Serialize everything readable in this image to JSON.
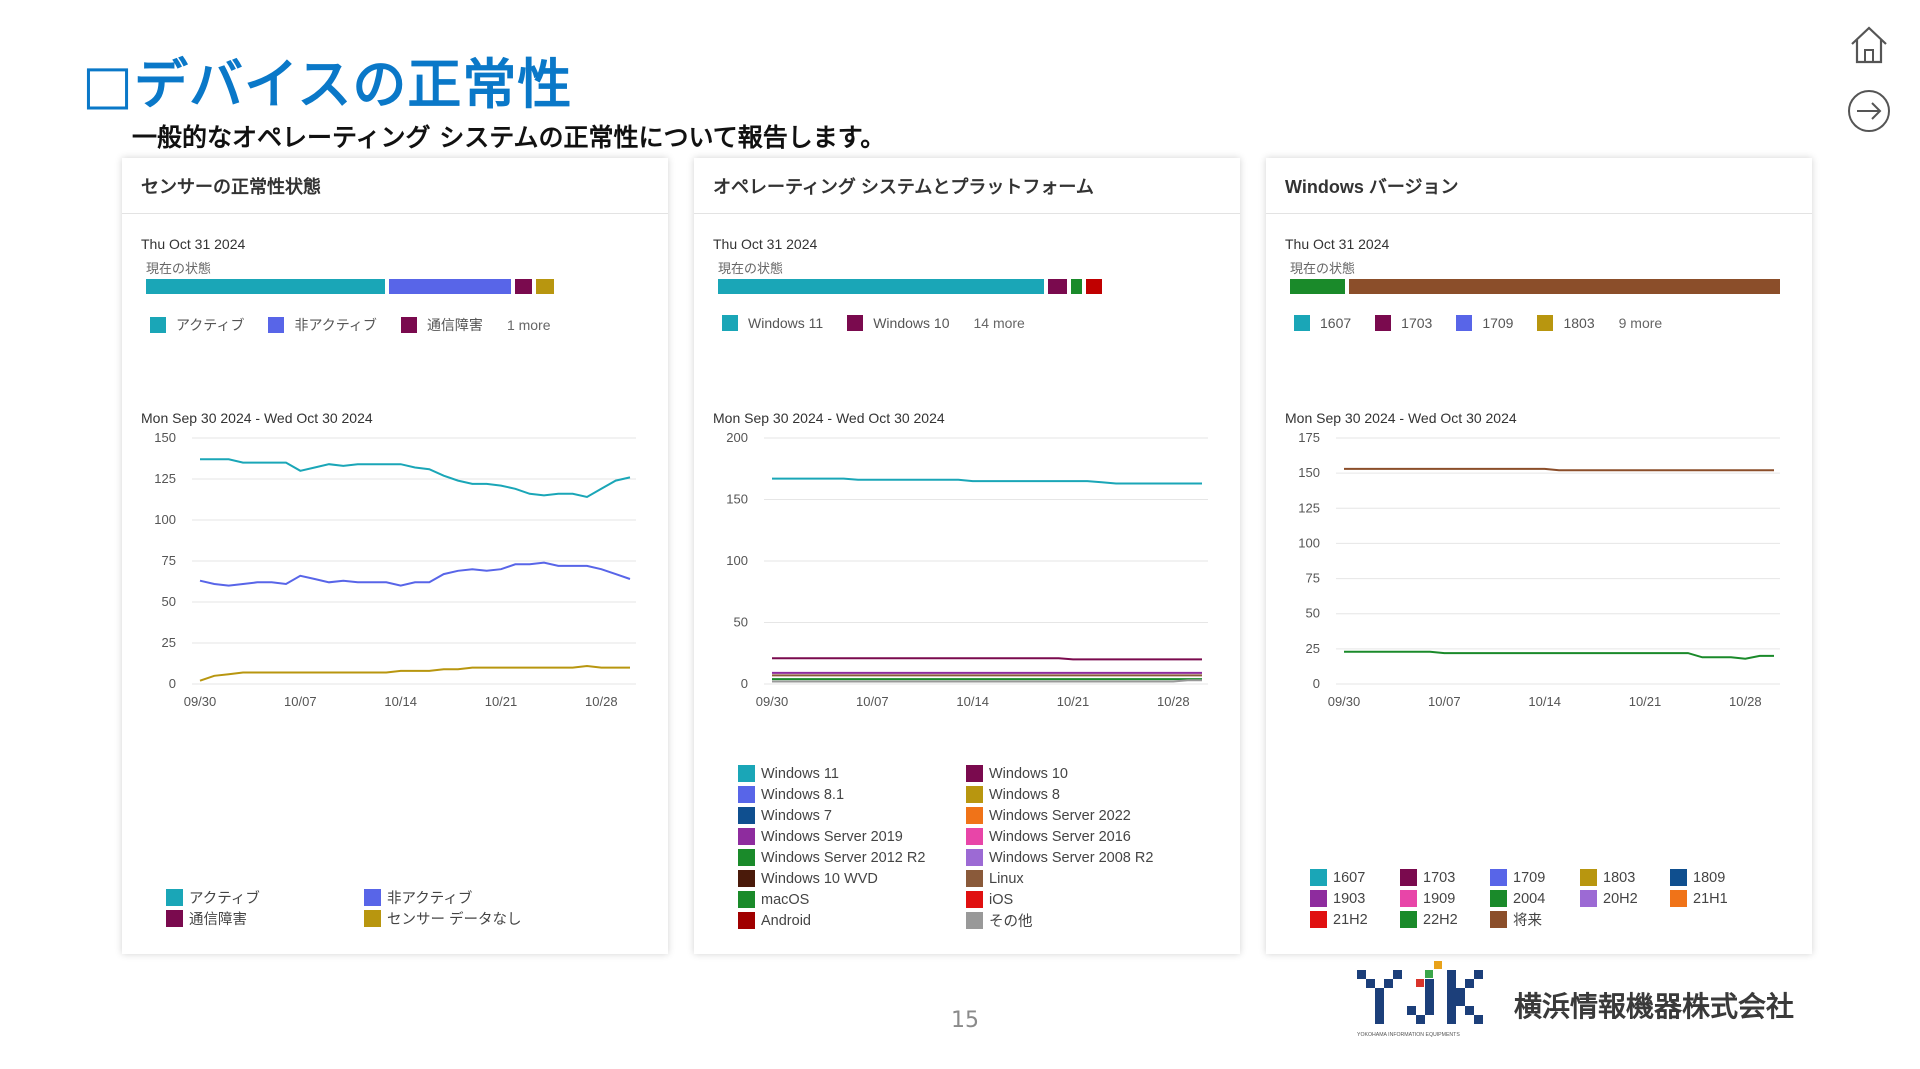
{
  "slide": {
    "title": "□デバイスの正常性",
    "subtitle": "一般的なオペレーティング システムの正常性について報告します。",
    "page_number": "15",
    "company_name": "横浜情報機器株式会社",
    "logo_text": "YJK",
    "logo_caption": "YOKOHAMA INFORMATION EQUIPMENTS"
  },
  "nav": {
    "home_icon": "home-icon",
    "next_icon": "arrow-right-circle-icon"
  },
  "panels": [
    {
      "title": "センサーの正常性状態",
      "now_date": "Thu Oct 31 2024",
      "now_label": "現在の状態",
      "status_bar": [
        {
          "value": 0.48,
          "color": "#1aa6b7"
        },
        {
          "value": 0.245,
          "color": "#5865e8"
        },
        {
          "value": 0.035,
          "color": "#7a0a4e"
        },
        {
          "value": 0.035,
          "color": "#b8960f"
        }
      ],
      "now_legend": [
        {
          "label": "アクティブ",
          "color": "#1aa6b7"
        },
        {
          "label": "非アクティブ",
          "color": "#5865e8"
        },
        {
          "label": "通信障害",
          "color": "#7a0a4e"
        }
      ],
      "more": "1 more",
      "range": "Mon Sep 30 2024 - Wed Oct 30 2024",
      "legend": [
        {
          "label": "アクティブ",
          "color": "#1aa6b7"
        },
        {
          "label": "非アクティブ",
          "color": "#5865e8"
        },
        {
          "label": "通信障害",
          "color": "#7a0a4e"
        },
        {
          "label": "センサー データなし",
          "color": "#b8960f"
        }
      ]
    },
    {
      "title": "オペレーティング システムとプラットフォーム",
      "now_date": "Thu Oct 31 2024",
      "now_label": "現在の状態",
      "status_bar": [
        {
          "value": 0.655,
          "color": "#1aa6b7"
        },
        {
          "value": 0.037,
          "color": "#7a0a4e"
        },
        {
          "value": 0.022,
          "color": "#1a8a2a"
        },
        {
          "value": 0.033,
          "color": "#c00000"
        }
      ],
      "now_legend": [
        {
          "label": "Windows 11",
          "color": "#1aa6b7"
        },
        {
          "label": "Windows 10",
          "color": "#7a0a4e"
        }
      ],
      "more": "14 more",
      "range": "Mon Sep 30 2024 - Wed Oct 30 2024",
      "legend": [
        {
          "label": "Windows 11",
          "color": "#1aa6b7"
        },
        {
          "label": "Windows 10",
          "color": "#7a0a4e"
        },
        {
          "label": "Windows 8.1",
          "color": "#5865e8"
        },
        {
          "label": "Windows 8",
          "color": "#b8960f"
        },
        {
          "label": "Windows 7",
          "color": "#0f4f8f"
        },
        {
          "label": "Windows Server 2022",
          "color": "#f07318"
        },
        {
          "label": "Windows Server 2019",
          "color": "#8e2c9e"
        },
        {
          "label": "Windows Server 2016",
          "color": "#e845a8"
        },
        {
          "label": "Windows Server 2012 R2",
          "color": "#1a8a2a"
        },
        {
          "label": "Windows Server 2008 R2",
          "color": "#9c6ad4"
        },
        {
          "label": "Windows 10 WVD",
          "color": "#4a1a0a"
        },
        {
          "label": "Linux",
          "color": "#8a5a3a"
        },
        {
          "label": "macOS",
          "color": "#1a8a2a"
        },
        {
          "label": "iOS",
          "color": "#e01010"
        },
        {
          "label": "Android",
          "color": "#a00000"
        },
        {
          "label": "その他",
          "color": "#999999"
        }
      ]
    },
    {
      "title": "Windows バージョン",
      "now_date": "Thu Oct 31 2024",
      "now_label": "現在の状態",
      "status_bar": [
        {
          "value": 0.11,
          "color": "#1a8a2a"
        },
        {
          "value": 0.865,
          "color": "#8b4e2a"
        }
      ],
      "now_legend": [
        {
          "label": "1607",
          "color": "#1aa6b7"
        },
        {
          "label": "1703",
          "color": "#7a0a4e"
        },
        {
          "label": "1709",
          "color": "#5865e8"
        },
        {
          "label": "1803",
          "color": "#b8960f"
        }
      ],
      "more": "9 more",
      "range": "Mon Sep 30 2024 - Wed Oct 30 2024",
      "legend": [
        {
          "label": "1607",
          "color": "#1aa6b7"
        },
        {
          "label": "1703",
          "color": "#7a0a4e"
        },
        {
          "label": "1709",
          "color": "#5865e8"
        },
        {
          "label": "1803",
          "color": "#b8960f"
        },
        {
          "label": "1809",
          "color": "#0f4f8f"
        },
        {
          "label": "1903",
          "color": "#8e2c9e"
        },
        {
          "label": "1909",
          "color": "#e845a8"
        },
        {
          "label": "2004",
          "color": "#1a8a2a"
        },
        {
          "label": "20H2",
          "color": "#9c6ad4"
        },
        {
          "label": "21H1",
          "color": "#f07318"
        },
        {
          "label": "21H2",
          "color": "#e01010"
        },
        {
          "label": "22H2",
          "color": "#1a8a2a"
        },
        {
          "label": "将来",
          "color": "#8b4e2a"
        }
      ]
    }
  ],
  "chart_data": [
    {
      "type": "line",
      "x": [
        "09/30",
        "10/01",
        "10/02",
        "10/03",
        "10/04",
        "10/05",
        "10/06",
        "10/07",
        "10/08",
        "10/09",
        "10/10",
        "10/11",
        "10/12",
        "10/13",
        "10/14",
        "10/15",
        "10/16",
        "10/17",
        "10/18",
        "10/19",
        "10/20",
        "10/21",
        "10/22",
        "10/23",
        "10/24",
        "10/25",
        "10/26",
        "10/27",
        "10/28",
        "10/29",
        "10/30"
      ],
      "xticks": [
        "09/30",
        "10/07",
        "10/14",
        "10/21",
        "10/28"
      ],
      "yticks": [
        0,
        25,
        50,
        75,
        100,
        125,
        150
      ],
      "ylim": [
        0,
        150
      ],
      "series": [
        {
          "name": "アクティブ",
          "color": "#1aa6b7",
          "values": [
            137,
            137,
            137,
            135,
            135,
            135,
            135,
            130,
            132,
            134,
            133,
            134,
            134,
            134,
            134,
            132,
            131,
            127,
            124,
            122,
            122,
            121,
            119,
            116,
            115,
            116,
            116,
            114,
            119,
            124,
            126
          ]
        },
        {
          "name": "非アクティブ",
          "color": "#5865e8",
          "values": [
            63,
            61,
            60,
            61,
            62,
            62,
            61,
            66,
            64,
            62,
            63,
            62,
            62,
            62,
            60,
            62,
            62,
            67,
            69,
            70,
            69,
            70,
            73,
            73,
            74,
            72,
            72,
            72,
            70,
            67,
            64
          ]
        },
        {
          "name": "センサー データなし",
          "color": "#b8960f",
          "values": [
            2,
            5,
            6,
            7,
            7,
            7,
            7,
            7,
            7,
            7,
            7,
            7,
            7,
            7,
            8,
            8,
            8,
            9,
            9,
            10,
            10,
            10,
            10,
            10,
            10,
            10,
            10,
            11,
            10,
            10,
            10
          ]
        }
      ]
    },
    {
      "type": "line",
      "x": [
        "09/30",
        "10/01",
        "10/02",
        "10/03",
        "10/04",
        "10/05",
        "10/06",
        "10/07",
        "10/08",
        "10/09",
        "10/10",
        "10/11",
        "10/12",
        "10/13",
        "10/14",
        "10/15",
        "10/16",
        "10/17",
        "10/18",
        "10/19",
        "10/20",
        "10/21",
        "10/22",
        "10/23",
        "10/24",
        "10/25",
        "10/26",
        "10/27",
        "10/28",
        "10/29",
        "10/30"
      ],
      "xticks": [
        "09/30",
        "10/07",
        "10/14",
        "10/21",
        "10/28"
      ],
      "yticks": [
        0,
        50,
        100,
        150,
        200
      ],
      "ylim": [
        0,
        200
      ],
      "series": [
        {
          "name": "Windows 11",
          "color": "#1aa6b7",
          "values": [
            167,
            167,
            167,
            167,
            167,
            167,
            166,
            166,
            166,
            166,
            166,
            166,
            166,
            166,
            165,
            165,
            165,
            165,
            165,
            165,
            165,
            165,
            165,
            164,
            163,
            163,
            163,
            163,
            163,
            163,
            163
          ]
        },
        {
          "name": "Windows 10",
          "color": "#7a0a4e",
          "values": [
            21,
            21,
            21,
            21,
            21,
            21,
            21,
            21,
            21,
            21,
            21,
            21,
            21,
            21,
            21,
            21,
            21,
            21,
            21,
            21,
            21,
            20,
            20,
            20,
            20,
            20,
            20,
            20,
            20,
            20,
            20
          ]
        },
        {
          "name": "Windows Server 2019",
          "color": "#8e2c9e",
          "values": [
            9,
            9,
            9,
            9,
            9,
            9,
            9,
            9,
            9,
            9,
            9,
            9,
            9,
            9,
            9,
            9,
            9,
            9,
            9,
            9,
            9,
            9,
            9,
            9,
            9,
            9,
            9,
            9,
            9,
            9,
            9
          ]
        },
        {
          "name": "Linux",
          "color": "#8a5a3a",
          "values": [
            7,
            7,
            7,
            7,
            7,
            7,
            7,
            7,
            7,
            7,
            7,
            7,
            7,
            7,
            7,
            7,
            7,
            7,
            7,
            7,
            7,
            7,
            7,
            7,
            7,
            7,
            7,
            7,
            7,
            7,
            7
          ]
        },
        {
          "name": "Windows Server 2012 R2",
          "color": "#1a8a2a",
          "values": [
            4,
            4,
            4,
            4,
            4,
            4,
            4,
            4,
            4,
            4,
            4,
            4,
            4,
            4,
            4,
            4,
            4,
            4,
            4,
            4,
            4,
            4,
            4,
            4,
            4,
            4,
            4,
            4,
            4,
            4,
            4
          ]
        },
        {
          "name": "その他",
          "color": "#999999",
          "values": [
            2,
            2,
            2,
            2,
            2,
            2,
            2,
            2,
            2,
            2,
            2,
            2,
            2,
            2,
            2,
            2,
            2,
            2,
            2,
            2,
            2,
            2,
            2,
            2,
            2,
            2,
            2,
            2,
            2,
            3,
            3
          ]
        }
      ]
    },
    {
      "type": "line",
      "x": [
        "09/30",
        "10/01",
        "10/02",
        "10/03",
        "10/04",
        "10/05",
        "10/06",
        "10/07",
        "10/08",
        "10/09",
        "10/10",
        "10/11",
        "10/12",
        "10/13",
        "10/14",
        "10/15",
        "10/16",
        "10/17",
        "10/18",
        "10/19",
        "10/20",
        "10/21",
        "10/22",
        "10/23",
        "10/24",
        "10/25",
        "10/26",
        "10/27",
        "10/28",
        "10/29",
        "10/30"
      ],
      "xticks": [
        "09/30",
        "10/07",
        "10/14",
        "10/21",
        "10/28"
      ],
      "yticks": [
        0,
        25,
        50,
        75,
        100,
        125,
        150,
        175
      ],
      "ylim": [
        0,
        175
      ],
      "series": [
        {
          "name": "将来",
          "color": "#8b4e2a",
          "values": [
            153,
            153,
            153,
            153,
            153,
            153,
            153,
            153,
            153,
            153,
            153,
            153,
            153,
            153,
            153,
            152,
            152,
            152,
            152,
            152,
            152,
            152,
            152,
            152,
            152,
            152,
            152,
            152,
            152,
            152,
            152
          ]
        },
        {
          "name": "22H2",
          "color": "#1a8a2a",
          "values": [
            23,
            23,
            23,
            23,
            23,
            23,
            23,
            22,
            22,
            22,
            22,
            22,
            22,
            22,
            22,
            22,
            22,
            22,
            22,
            22,
            22,
            22,
            22,
            22,
            22,
            19,
            19,
            19,
            18,
            20,
            20
          ]
        }
      ]
    }
  ]
}
